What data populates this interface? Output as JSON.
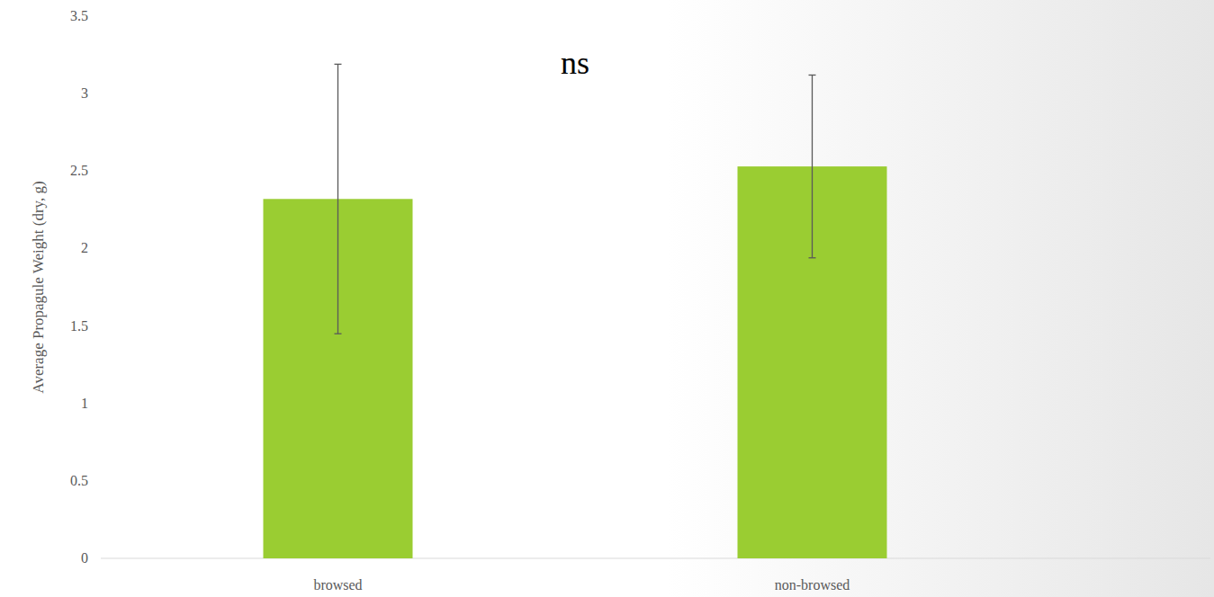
{
  "chart_data": {
    "type": "bar",
    "annotation": "ns",
    "y_label": "Average Propagule Weight (dry, g)",
    "categories": [
      "browsed",
      "non-browsed"
    ],
    "values": [
      2.32,
      2.53
    ],
    "errors": [
      0.87,
      0.59
    ],
    "color": "#9acd32",
    "ylim": [
      0,
      3.5
    ],
    "yticks": [
      0,
      0.5,
      1,
      1.5,
      2,
      2.5,
      3,
      3.5
    ],
    "grid": false
  }
}
